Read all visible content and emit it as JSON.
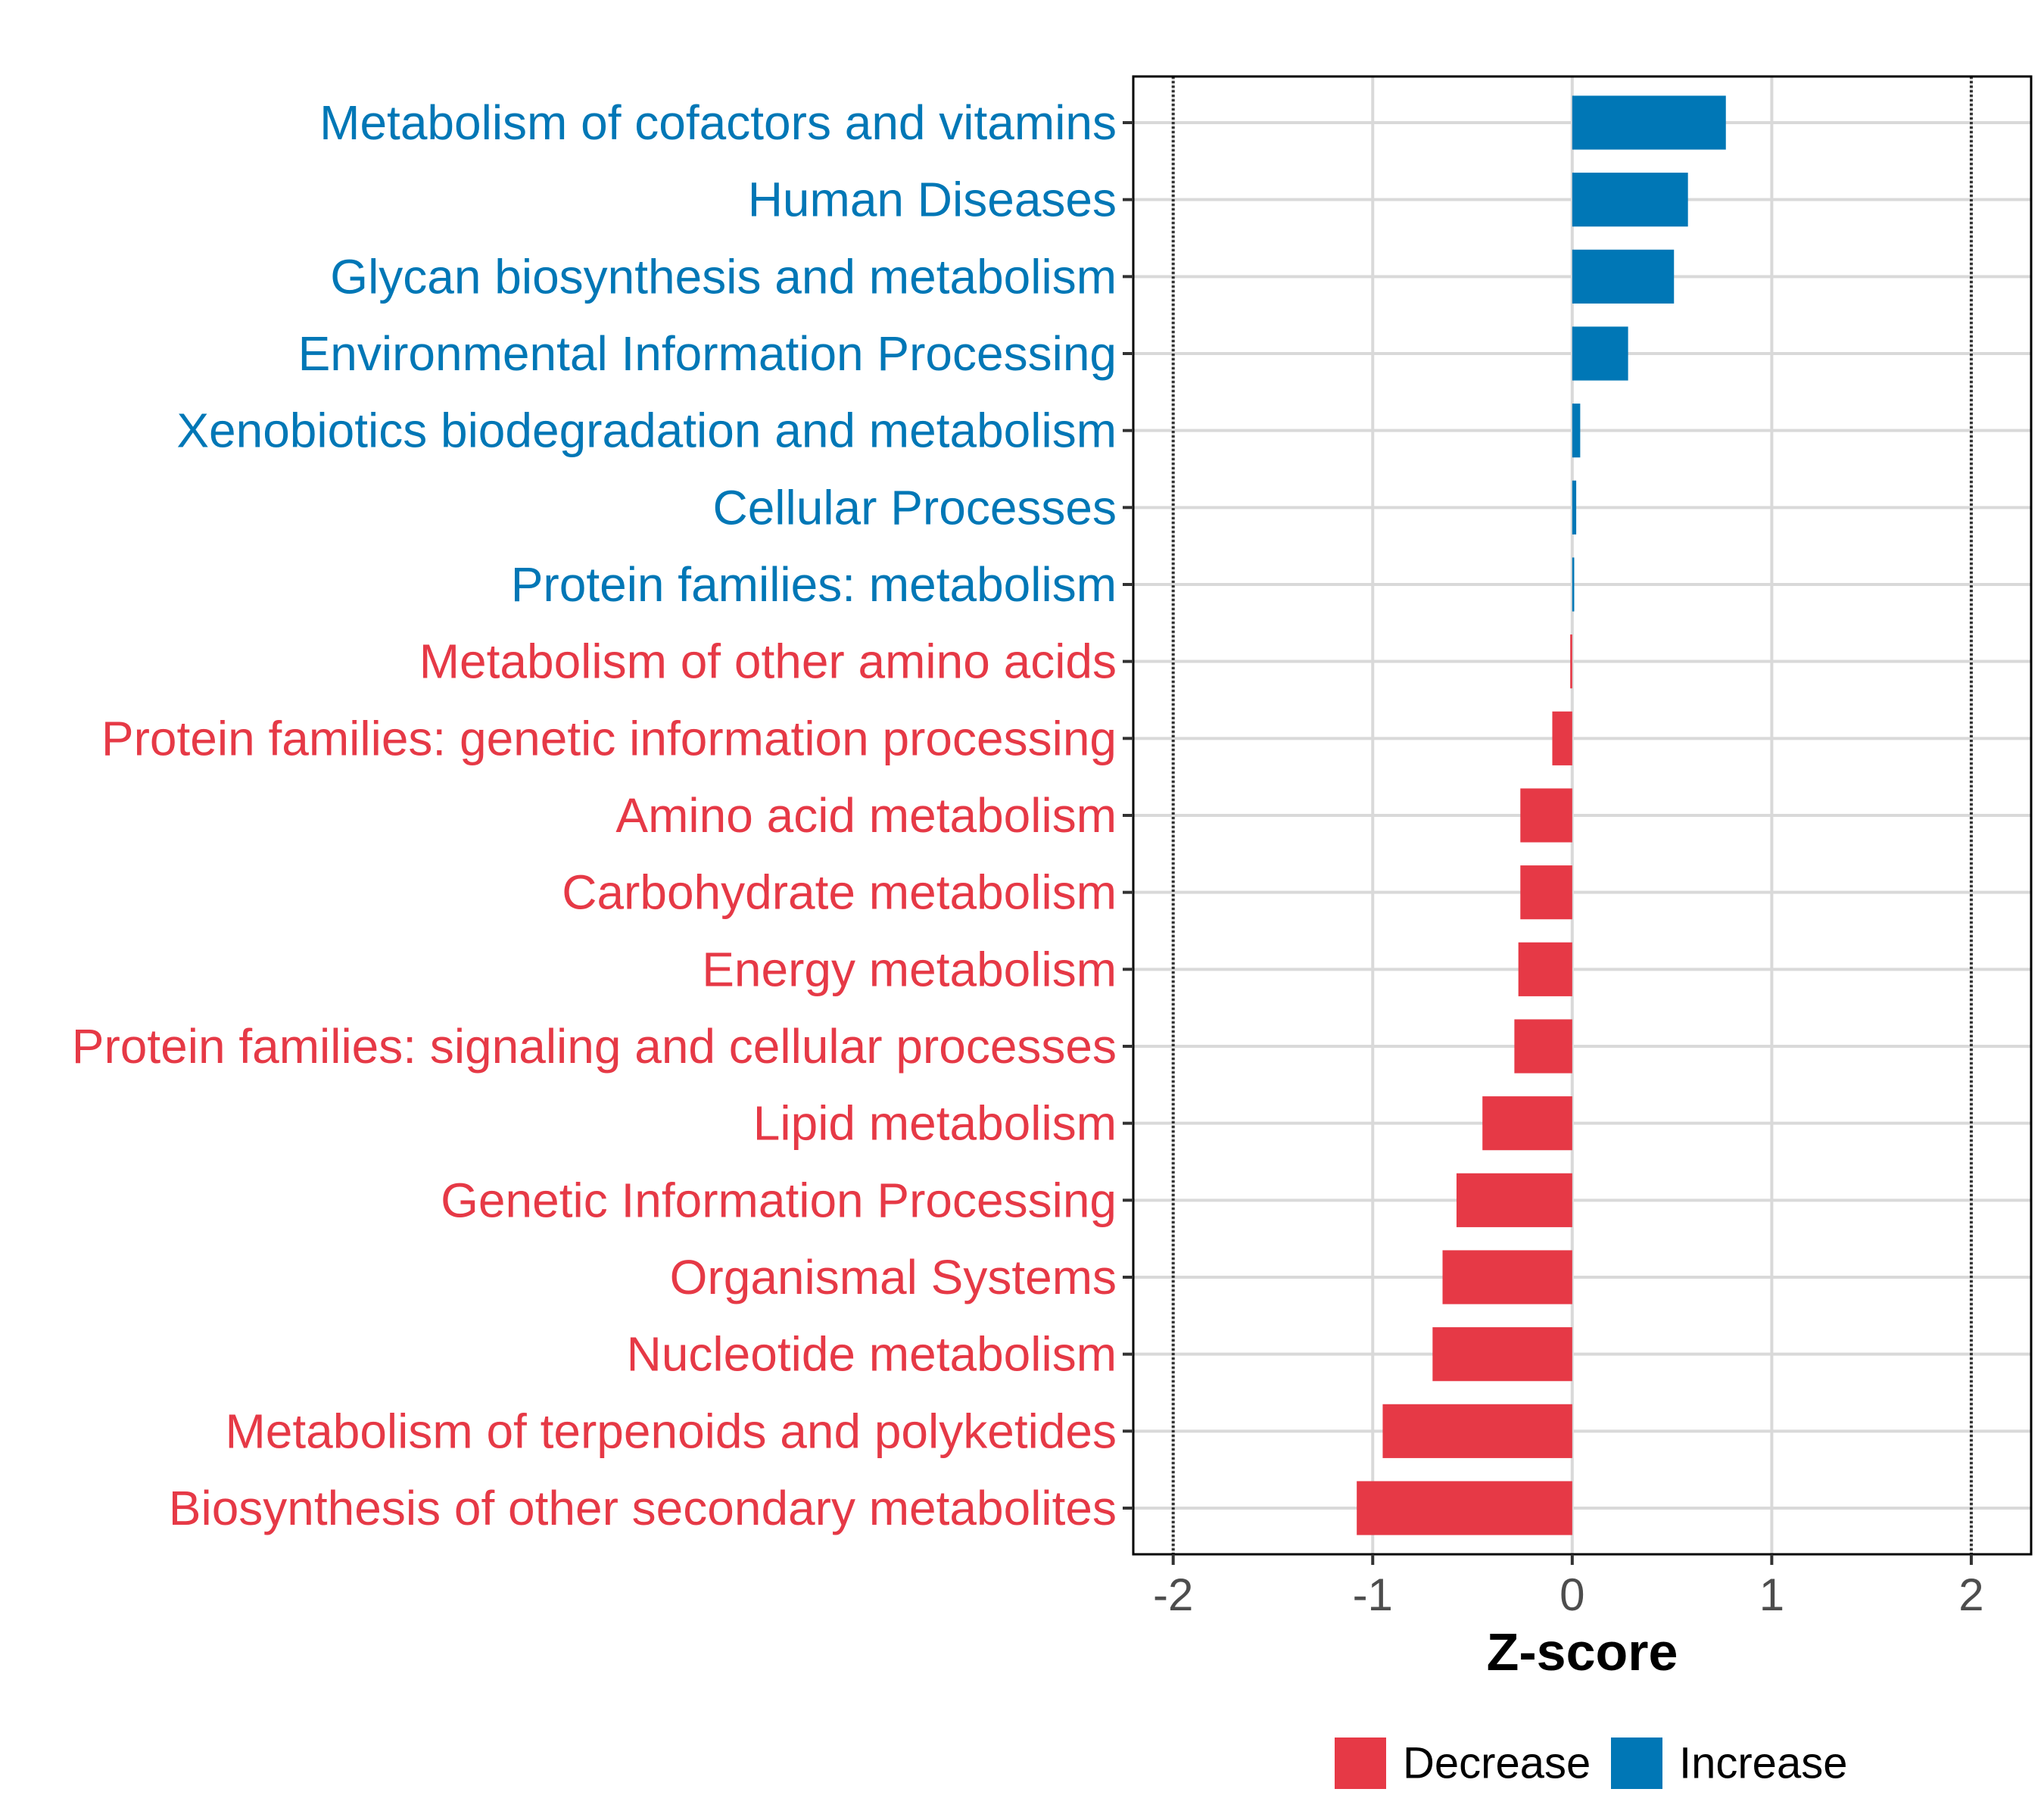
{
  "chart_data": {
    "type": "bar",
    "orientation": "horizontal",
    "xlabel": "Z-score",
    "xlim": [
      -2.2,
      2.3
    ],
    "xticks": [
      -2,
      -1,
      0,
      1,
      2
    ],
    "xtick_labels": [
      "-2",
      "-1",
      "0",
      "1",
      "2"
    ],
    "reference_lines": [
      -2,
      2
    ],
    "grid": true,
    "legend": {
      "position": "bottom",
      "entries": [
        {
          "label": "Decrease",
          "color": "#E63946"
        },
        {
          "label": "Increase",
          "color": "#0077B6"
        }
      ]
    },
    "categories": [
      "Metabolism of cofactors and vitamins",
      "Human Diseases",
      "Glycan biosynthesis and metabolism",
      "Environmental Information Processing",
      "Xenobiotics biodegradation and metabolism",
      "Cellular Processes",
      "Protein families: metabolism",
      "Metabolism of other amino acids",
      "Protein families: genetic information processing",
      "Amino acid metabolism",
      "Carbohydrate metabolism",
      "Energy metabolism",
      "Protein families: signaling and cellular processes",
      "Lipid metabolism",
      "Genetic Information Processing",
      "Organismal Systems",
      "Nucleotide metabolism",
      "Metabolism of terpenoids and polyketides",
      "Biosynthesis of other secondary metabolites"
    ],
    "values": [
      0.77,
      0.58,
      0.51,
      0.28,
      0.04,
      0.02,
      0.01,
      -0.01,
      -0.1,
      -0.26,
      -0.26,
      -0.27,
      -0.29,
      -0.45,
      -0.58,
      -0.65,
      -0.7,
      -0.95,
      -1.08
    ],
    "groups": [
      "Increase",
      "Increase",
      "Increase",
      "Increase",
      "Increase",
      "Increase",
      "Increase",
      "Decrease",
      "Decrease",
      "Decrease",
      "Decrease",
      "Decrease",
      "Decrease",
      "Decrease",
      "Decrease",
      "Decrease",
      "Decrease",
      "Decrease",
      "Decrease"
    ]
  }
}
